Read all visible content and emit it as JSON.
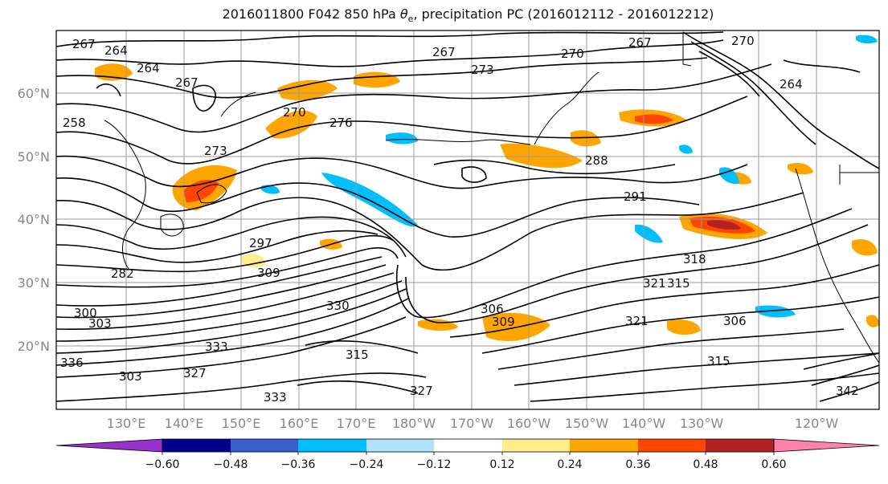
{
  "title": {
    "prefix": "2016011800 F042 850 hPa ",
    "theta": "θ",
    "sub": "e",
    "suffix": ", precipitation PC (2016012112 - 2016012212)"
  },
  "lat_ticks": [
    "60°N",
    "50°N",
    "40°N",
    "30°N",
    "20°N"
  ],
  "lon_ticks": [
    "130°E",
    "140°E",
    "150°E",
    "160°E",
    "170°E",
    "180°W",
    "170°W",
    "160°W",
    "150°W",
    "140°W",
    "130°W",
    "120°W"
  ],
  "colorbar": {
    "colors": [
      "#9932cc",
      "#00008b",
      "#3a5fcd",
      "#00bfff",
      "#b0e2ff",
      "#ffffff",
      "#ffec8b",
      "#ffa500",
      "#ff4500",
      "#b22222",
      "#ff82ab"
    ],
    "tick_labels": [
      "−0.60",
      "−0.48",
      "−0.36",
      "−0.24",
      "−0.12",
      "0.12",
      "0.24",
      "0.36",
      "0.48",
      "0.60"
    ]
  },
  "contour_labels": [
    {
      "text": "267"
    },
    {
      "text": "264"
    },
    {
      "text": "264"
    },
    {
      "text": "267"
    },
    {
      "text": "258"
    },
    {
      "text": "270"
    },
    {
      "text": "276"
    },
    {
      "text": "273"
    },
    {
      "text": "267"
    },
    {
      "text": "273"
    },
    {
      "text": "270"
    },
    {
      "text": "267"
    },
    {
      "text": "270"
    },
    {
      "text": "264"
    },
    {
      "text": "288"
    },
    {
      "text": "291"
    },
    {
      "text": "297"
    },
    {
      "text": "309"
    },
    {
      "text": "282"
    },
    {
      "text": "300"
    },
    {
      "text": "303"
    },
    {
      "text": "330"
    },
    {
      "text": "306"
    },
    {
      "text": "318"
    },
    {
      "text": "321"
    },
    {
      "text": "315"
    },
    {
      "text": "306"
    },
    {
      "text": "321"
    },
    {
      "text": "315"
    },
    {
      "text": "333"
    },
    {
      "text": "336"
    },
    {
      "text": "327"
    },
    {
      "text": "315"
    },
    {
      "text": "327"
    },
    {
      "text": "333"
    },
    {
      "text": "342"
    },
    {
      "text": "303"
    },
    {
      "text": "309"
    }
  ]
}
